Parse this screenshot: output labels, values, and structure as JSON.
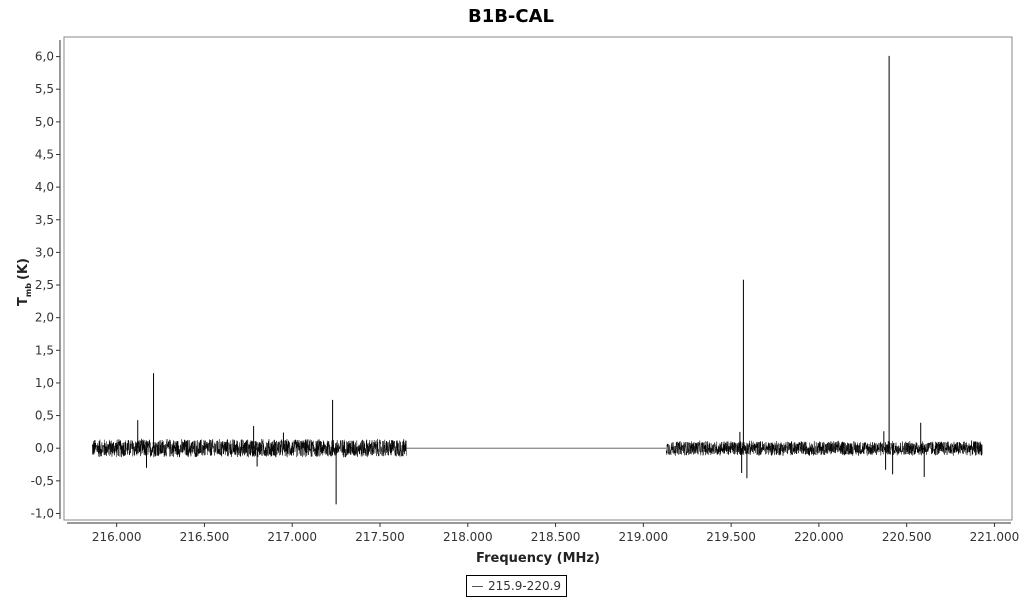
{
  "chart_data": {
    "type": "line",
    "title": "B1B-CAL",
    "xlabel": "Frequency (MHz)",
    "ylabel_main": "T",
    "ylabel_sub": "mb",
    "ylabel_unit": "(K)",
    "xlim": [
      215.7,
      221.1
    ],
    "ylim": [
      -1.1,
      6.3
    ],
    "x_ticks": [
      216.0,
      216.5,
      217.0,
      217.5,
      218.0,
      218.5,
      219.0,
      219.5,
      220.0,
      220.5,
      221.0
    ],
    "x_tick_labels": [
      "216.000",
      "216.500",
      "217.000",
      "217.500",
      "218.000",
      "218.500",
      "219.000",
      "219.500",
      "220.000",
      "220.500",
      "221.000"
    ],
    "y_ticks": [
      -1.0,
      -0.5,
      0.0,
      0.5,
      1.0,
      1.5,
      2.0,
      2.5,
      3.0,
      3.5,
      4.0,
      4.5,
      5.0,
      5.5,
      6.0
    ],
    "y_tick_labels": [
      "-1,0",
      "-0,5",
      "0,0",
      "0,5",
      "1,0",
      "1,5",
      "2,0",
      "2,5",
      "3,0",
      "3,5",
      "4,0",
      "4,5",
      "5,0",
      "5,5",
      "6,0"
    ],
    "grid": false,
    "legend_position": "bottom-center",
    "series": [
      {
        "name": "215.9-220.9",
        "color": "#000000",
        "segments": [
          {
            "x_start": 215.86,
            "x_end": 217.65,
            "noise_amplitude": 0.15
          },
          {
            "x_start": 219.13,
            "x_end": 220.93,
            "noise_amplitude": 0.12
          }
        ],
        "gap": {
          "x_start": 217.65,
          "x_end": 219.13,
          "y": 0.0
        },
        "peaks": [
          {
            "x": 216.12,
            "y": 0.43
          },
          {
            "x": 216.17,
            "y": -0.3
          },
          {
            "x": 216.21,
            "y": 1.15
          },
          {
            "x": 216.78,
            "y": 0.34
          },
          {
            "x": 216.8,
            "y": -0.28
          },
          {
            "x": 216.95,
            "y": 0.24
          },
          {
            "x": 217.23,
            "y": 0.74
          },
          {
            "x": 217.25,
            "y": -0.86
          },
          {
            "x": 219.55,
            "y": 0.25
          },
          {
            "x": 219.56,
            "y": -0.38
          },
          {
            "x": 219.57,
            "y": 2.58
          },
          {
            "x": 219.59,
            "y": -0.46
          },
          {
            "x": 220.37,
            "y": 0.26
          },
          {
            "x": 220.38,
            "y": -0.33
          },
          {
            "x": 220.4,
            "y": 6.01
          },
          {
            "x": 220.42,
            "y": -0.4
          },
          {
            "x": 220.58,
            "y": 0.39
          },
          {
            "x": 220.6,
            "y": -0.44
          }
        ]
      }
    ]
  }
}
